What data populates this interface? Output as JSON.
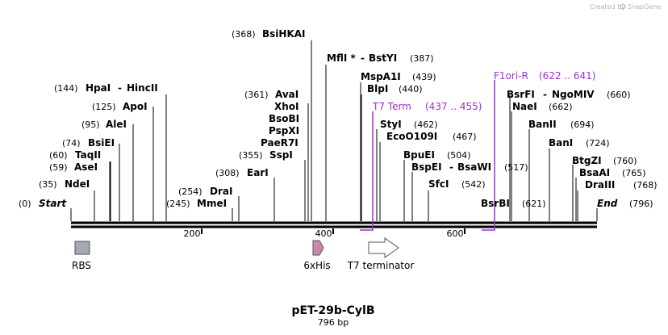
{
  "credit": {
    "prefix": "Created by",
    "brand": "SnapGene"
  },
  "map": {
    "name": "pET-29b-CylB",
    "length_label": "796 bp",
    "length": 796
  },
  "ends": {
    "start": {
      "label": "Start",
      "pos": "(0)"
    },
    "end": {
      "label": "End",
      "pos": "(796)"
    }
  },
  "enzymes": [
    {
      "name": "BsiHKAI",
      "pos": "(368)"
    },
    {
      "name": "MflI *",
      "name2": "BstYI",
      "pos": "(387)"
    },
    {
      "name": "MspA1I",
      "pos": "(439)"
    },
    {
      "name": "BlpI",
      "pos": "(440)"
    },
    {
      "name": "HpaI",
      "name2": "HincII",
      "pos": "(144)"
    },
    {
      "name": "ApoI",
      "pos": "(125)"
    },
    {
      "name": "AleI",
      "pos": "(95)"
    },
    {
      "name": "BsiEI",
      "pos": "(74)"
    },
    {
      "name": "TaqII",
      "pos": "(60)"
    },
    {
      "name": "AseI",
      "pos": "(59)"
    },
    {
      "name": "NdeI",
      "pos": "(35)"
    },
    {
      "name": "AvaI",
      "pos": "(361)"
    },
    {
      "name": "XhoI",
      "pos": ""
    },
    {
      "name": "BsoBI",
      "pos": ""
    },
    {
      "name": "PspXI",
      "pos": ""
    },
    {
      "name": "PaeR7I",
      "pos": ""
    },
    {
      "name": "SspI",
      "pos": "(355)"
    },
    {
      "name": "EarI",
      "pos": "(308)"
    },
    {
      "name": "DraI",
      "pos": "(254)"
    },
    {
      "name": "MmeI",
      "pos": "(245)"
    },
    {
      "name": "StyI",
      "pos": "(462)"
    },
    {
      "name": "EcoO109I",
      "pos": "(467)"
    },
    {
      "name": "BpuEI",
      "pos": "(504)"
    },
    {
      "name": "BspEI",
      "name2": "BsaWI",
      "pos": "(517)"
    },
    {
      "name": "SfcI",
      "pos": "(542)"
    },
    {
      "name": "BsrBI",
      "pos": "(621)"
    },
    {
      "name": "BsrFI",
      "name2": "NgoMIV",
      "pos": "(660)"
    },
    {
      "name": "NaeI",
      "pos": "(662)"
    },
    {
      "name": "BanII",
      "pos": "(694)"
    },
    {
      "name": "BanI",
      "pos": "(724)"
    },
    {
      "name": "BtgZI",
      "pos": "(760)"
    },
    {
      "name": "BsaAI",
      "pos": "(765)"
    },
    {
      "name": "DraIII",
      "pos": "(768)"
    }
  ],
  "primers": [
    {
      "name": "F1ori-R",
      "range": "(622 .. 641)"
    },
    {
      "name": "T7 Term",
      "range": "(437 .. 455)"
    }
  ],
  "features": [
    {
      "name": "RBS",
      "color": "#a3a9b5"
    },
    {
      "name": "6xHis",
      "color": "#c98aa8"
    },
    {
      "name": "T7 terminator",
      "color": "#ffffff"
    }
  ],
  "ticks": [
    "200",
    "400",
    "600"
  ],
  "colors": {
    "primer": "#9b30d0",
    "backbone": "#000000"
  }
}
